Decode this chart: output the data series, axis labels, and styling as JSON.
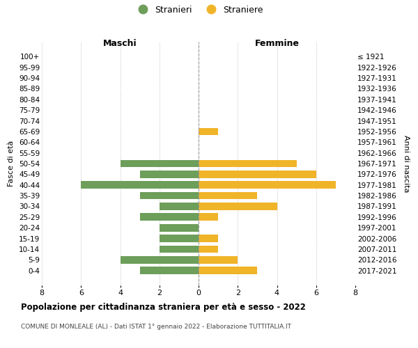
{
  "age_groups": [
    "100+",
    "95-99",
    "90-94",
    "85-89",
    "80-84",
    "75-79",
    "70-74",
    "65-69",
    "60-64",
    "55-59",
    "50-54",
    "45-49",
    "40-44",
    "35-39",
    "30-34",
    "25-29",
    "20-24",
    "15-19",
    "10-14",
    "5-9",
    "0-4"
  ],
  "birth_years": [
    "≤ 1921",
    "1922-1926",
    "1927-1931",
    "1932-1936",
    "1937-1941",
    "1942-1946",
    "1947-1951",
    "1952-1956",
    "1957-1961",
    "1962-1966",
    "1967-1971",
    "1972-1976",
    "1977-1981",
    "1982-1986",
    "1987-1991",
    "1992-1996",
    "1997-2001",
    "2002-2006",
    "2007-2011",
    "2012-2016",
    "2017-2021"
  ],
  "maschi": [
    0,
    0,
    0,
    0,
    0,
    0,
    0,
    0,
    0,
    0,
    4,
    3,
    6,
    3,
    2,
    3,
    2,
    2,
    2,
    4,
    3
  ],
  "femmine": [
    0,
    0,
    0,
    0,
    0,
    0,
    0,
    1,
    0,
    0,
    5,
    6,
    7,
    3,
    4,
    1,
    0,
    1,
    1,
    2,
    3
  ],
  "color_maschi": "#6d9e5a",
  "color_femmine": "#f0b429",
  "title": "Popolazione per cittadinanza straniera per età e sesso - 2022",
  "subtitle": "COMUNE DI MONLEALE (AL) - Dati ISTAT 1° gennaio 2022 - Elaborazione TUTTITALIA.IT",
  "legend_maschi": "Stranieri",
  "legend_femmine": "Straniere",
  "xlabel_left": "Maschi",
  "xlabel_right": "Femmine",
  "ylabel_left": "Fasce di età",
  "ylabel_right": "Anni di nascita",
  "xlim": 8,
  "background_color": "#ffffff",
  "grid_color": "#cccccc"
}
